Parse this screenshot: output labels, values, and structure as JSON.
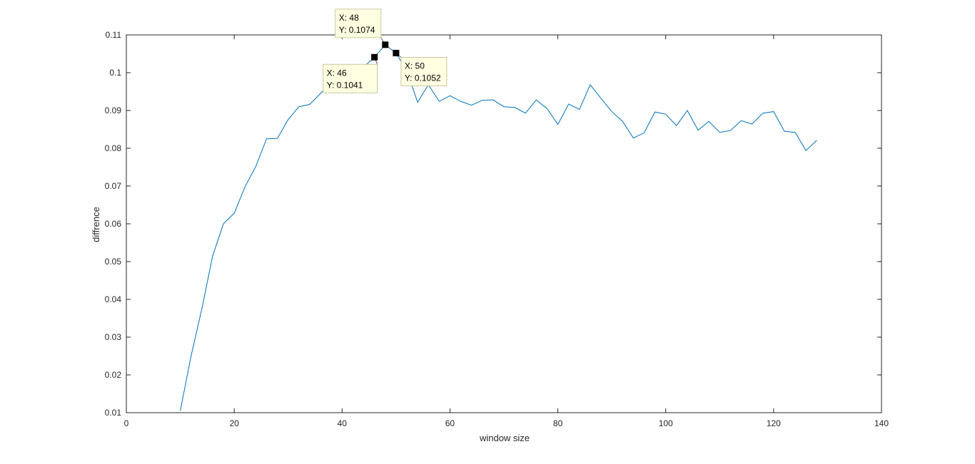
{
  "chart_data": {
    "type": "line",
    "xlabel": "window size",
    "ylabel": "diffrence",
    "xlim": [
      0,
      140
    ],
    "ylim": [
      0.01,
      0.11
    ],
    "xticks": [
      0,
      20,
      40,
      60,
      80,
      100,
      120,
      140
    ],
    "xtick_labels": [
      "0",
      "20",
      "40",
      "60",
      "80",
      "100",
      "120",
      "140"
    ],
    "yticks": [
      0.01,
      0.02,
      0.03,
      0.04,
      0.05,
      0.06,
      0.07,
      0.08,
      0.09,
      0.1,
      0.11
    ],
    "ytick_labels": [
      "0.01",
      "0.02",
      "0.03",
      "0.04",
      "0.05",
      "0.06",
      "0.07",
      "0.08",
      "0.09",
      "0.1",
      "0.11"
    ],
    "grid": false,
    "series": [
      {
        "color": "#0072BD",
        "x": [
          10,
          12,
          14,
          16,
          18,
          20,
          22,
          24,
          26,
          28,
          30,
          32,
          34,
          36,
          38,
          40,
          42,
          44,
          46,
          48,
          50,
          52,
          54,
          56,
          58,
          60,
          62,
          64,
          66,
          68,
          70,
          72,
          74,
          76,
          78,
          80,
          82,
          84,
          86,
          88,
          90,
          92,
          94,
          96,
          98,
          100,
          102,
          104,
          106,
          108,
          110,
          112,
          114,
          116,
          118,
          120,
          122,
          124,
          126,
          128
        ],
        "y": [
          0.0105,
          0.025,
          0.0375,
          0.0515,
          0.06,
          0.0628,
          0.0698,
          0.0752,
          0.0825,
          0.0826,
          0.0876,
          0.091,
          0.0916,
          0.0945,
          0.0975,
          0.0995,
          0.1005,
          0.1015,
          0.1041,
          0.1074,
          0.1052,
          0.1005,
          0.0922,
          0.0968,
          0.0924,
          0.0939,
          0.0924,
          0.0914,
          0.0927,
          0.0928,
          0.091,
          0.0908,
          0.0893,
          0.0928,
          0.0905,
          0.0863,
          0.0917,
          0.0903,
          0.0968,
          0.0932,
          0.0897,
          0.0871,
          0.0827,
          0.0841,
          0.0896,
          0.089,
          0.086,
          0.09,
          0.0848,
          0.0871,
          0.0842,
          0.0847,
          0.0873,
          0.0864,
          0.0893,
          0.0897,
          0.0845,
          0.0842,
          0.0794,
          0.0821
        ]
      }
    ],
    "datatips": [
      {
        "x": 46,
        "y": 0.1041,
        "x_text": "X: 46",
        "y_text": "Y: 0.1041"
      },
      {
        "x": 48,
        "y": 0.1074,
        "x_text": "X: 48",
        "y_text": "Y: 0.1074"
      },
      {
        "x": 50,
        "y": 0.1052,
        "x_text": "X: 50",
        "y_text": "Y: 0.1052"
      }
    ]
  }
}
